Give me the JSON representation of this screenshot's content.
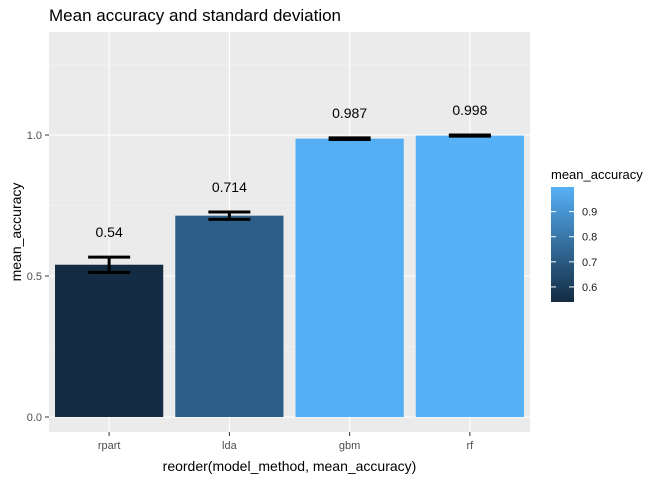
{
  "chart_data": {
    "type": "bar",
    "title": "Mean accuracy and standard deviation",
    "xlabel": "reorder(model_method, mean_accuracy)",
    "ylabel": "mean_accuracy",
    "categories": [
      "rpart",
      "lda",
      "gbm",
      "rf"
    ],
    "values": [
      0.54,
      0.714,
      0.987,
      0.998
    ],
    "sd": [
      0.027,
      0.013,
      0.003,
      0.002
    ],
    "labels": [
      "0.54",
      "0.714",
      "0.987",
      "0.998"
    ],
    "ylim": [
      0,
      1.3
    ],
    "yticks": [
      0.0,
      0.5,
      1.0
    ],
    "ytick_labels": [
      "0.0",
      "0.5",
      "1.0"
    ],
    "grid": true,
    "legend": {
      "title": "mean_accuracy",
      "placement": "right",
      "range": [
        0.54,
        0.998
      ],
      "ticks": [
        0.6,
        0.7,
        0.8,
        0.9
      ],
      "tick_labels": [
        "0.6",
        "0.7",
        "0.8",
        "0.9"
      ],
      "color_low": "#132B43",
      "color_high": "#56B1F7"
    },
    "colors": {
      "panel": "#EBEBEB",
      "grid_major": "#FFFFFF",
      "errorbar": "#000000"
    }
  }
}
